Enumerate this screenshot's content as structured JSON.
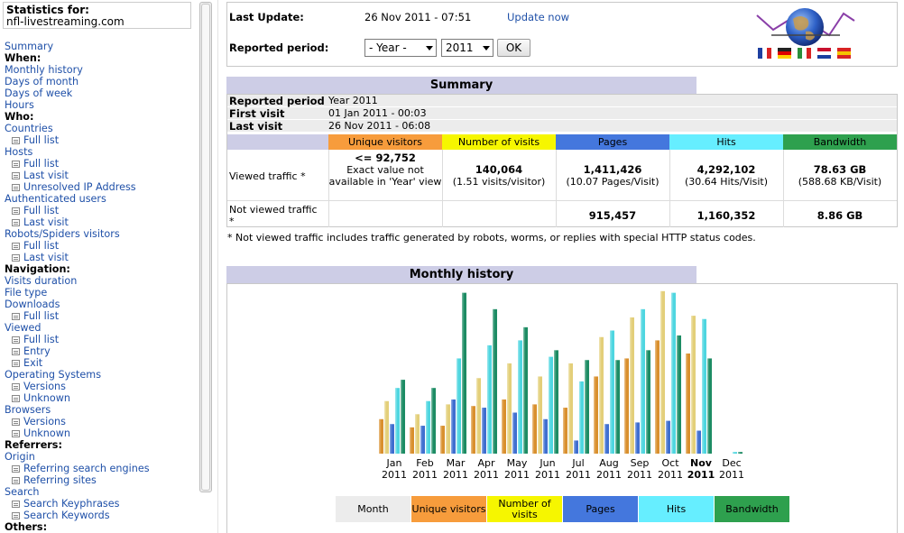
{
  "sidebar": {
    "stats_label": "Statistics for:",
    "site": "nfl-livestreaming.com",
    "items": [
      {
        "type": "link",
        "label": "Summary"
      },
      {
        "type": "head",
        "label": "When:"
      },
      {
        "type": "link",
        "label": "Monthly history"
      },
      {
        "type": "link",
        "label": "Days of month"
      },
      {
        "type": "link",
        "label": "Days of week"
      },
      {
        "type": "link",
        "label": "Hours"
      },
      {
        "type": "head",
        "label": "Who:"
      },
      {
        "type": "link",
        "label": "Countries"
      },
      {
        "type": "sub",
        "label": "Full list"
      },
      {
        "type": "link",
        "label": "Hosts"
      },
      {
        "type": "sub",
        "label": "Full list"
      },
      {
        "type": "sub",
        "label": "Last visit"
      },
      {
        "type": "sub",
        "label": "Unresolved IP Address"
      },
      {
        "type": "link",
        "label": "Authenticated users"
      },
      {
        "type": "sub",
        "label": "Full list"
      },
      {
        "type": "sub",
        "label": "Last visit"
      },
      {
        "type": "link",
        "label": "Robots/Spiders visitors"
      },
      {
        "type": "sub",
        "label": "Full list"
      },
      {
        "type": "sub",
        "label": "Last visit"
      },
      {
        "type": "head",
        "label": "Navigation:"
      },
      {
        "type": "link",
        "label": "Visits duration"
      },
      {
        "type": "link",
        "label": "File type"
      },
      {
        "type": "link",
        "label": "Downloads"
      },
      {
        "type": "sub",
        "label": "Full list"
      },
      {
        "type": "link",
        "label": "Viewed"
      },
      {
        "type": "sub",
        "label": "Full list"
      },
      {
        "type": "sub",
        "label": "Entry"
      },
      {
        "type": "sub",
        "label": "Exit"
      },
      {
        "type": "link",
        "label": "Operating Systems"
      },
      {
        "type": "sub",
        "label": "Versions"
      },
      {
        "type": "sub",
        "label": "Unknown"
      },
      {
        "type": "link",
        "label": "Browsers"
      },
      {
        "type": "sub",
        "label": "Versions"
      },
      {
        "type": "sub",
        "label": "Unknown"
      },
      {
        "type": "head",
        "label": "Referrers:"
      },
      {
        "type": "link",
        "label": "Origin"
      },
      {
        "type": "sub",
        "label": "Referring search engines"
      },
      {
        "type": "sub",
        "label": "Referring sites"
      },
      {
        "type": "link",
        "label": "Search"
      },
      {
        "type": "sub",
        "label": "Search Keyphrases"
      },
      {
        "type": "sub",
        "label": "Search Keywords"
      },
      {
        "type": "head",
        "label": "Others:"
      }
    ]
  },
  "header": {
    "last_update_label": "Last Update:",
    "last_update_value": "26 Nov 2011 - 07:51",
    "update_now": "Update now",
    "period_label": "Reported period:",
    "month_select": "- Year -",
    "year_select": "2011",
    "ok": "OK",
    "flags": [
      "#1e3fa0",
      "#222222",
      "#2a8f3a",
      "#1a3fa0",
      "#d92323"
    ]
  },
  "summary": {
    "title": "Summary",
    "reported_period_label": "Reported period",
    "reported_period_value": "Year 2011",
    "first_visit_label": "First visit",
    "first_visit_value": "01 Jan 2011 - 00:03",
    "last_visit_label": "Last visit",
    "last_visit_value": "26 Nov 2011 - 06:08",
    "columns": [
      "Unique visitors",
      "Number of visits",
      "Pages",
      "Hits",
      "Bandwidth"
    ],
    "column_colors": [
      "#f79c3c",
      "#f6f600",
      "#4477dd",
      "#66eeff",
      "#2ea04e"
    ],
    "viewed_label": "Viewed traffic *",
    "viewed": {
      "unique": "<= 92,752",
      "unique_note": "Exact value not available in 'Year' view",
      "visits": "140,064",
      "visits_sub": "(1.51 visits/visitor)",
      "pages": "1,411,426",
      "pages_sub": "(10.07 Pages/Visit)",
      "hits": "4,292,102",
      "hits_sub": "(30.64 Hits/Visit)",
      "bandwidth": "78.63 GB",
      "bandwidth_sub": "(588.68 KB/Visit)"
    },
    "not_viewed_label": "Not viewed traffic *",
    "not_viewed": {
      "pages": "915,457",
      "hits": "1,160,352",
      "bandwidth": "8.86 GB"
    },
    "footnote": "* Not viewed traffic includes traffic generated by robots, worms, or replies with special HTTP status codes."
  },
  "monthly": {
    "title": "Monthly history",
    "months": [
      {
        "name": "Jan",
        "year": "2011",
        "current": false
      },
      {
        "name": "Feb",
        "year": "2011",
        "current": false
      },
      {
        "name": "Mar",
        "year": "2011",
        "current": false
      },
      {
        "name": "Apr",
        "year": "2011",
        "current": false
      },
      {
        "name": "May",
        "year": "2011",
        "current": false
      },
      {
        "name": "Jun",
        "year": "2011",
        "current": false
      },
      {
        "name": "Jul",
        "year": "2011",
        "current": false
      },
      {
        "name": "Aug",
        "year": "2011",
        "current": false
      },
      {
        "name": "Sep",
        "year": "2011",
        "current": false
      },
      {
        "name": "Oct",
        "year": "2011",
        "current": false
      },
      {
        "name": "Nov",
        "year": "2011",
        "current": true
      },
      {
        "name": "Dec",
        "year": "2011",
        "current": false
      }
    ],
    "legend": [
      "Month",
      "Unique visitors",
      "Number of visits",
      "Pages",
      "Hits",
      "Bandwidth"
    ],
    "legend_colors": [
      "#ececec",
      "#f79c3c",
      "#f6f600",
      "#4477dd",
      "#66eeff",
      "#2ea04e"
    ]
  },
  "chart_data": {
    "type": "bar",
    "categories": [
      "Jan 2011",
      "Feb 2011",
      "Mar 2011",
      "Apr 2011",
      "May 2011",
      "Jun 2011",
      "Jul 2011",
      "Aug 2011",
      "Sep 2011",
      "Oct 2011",
      "Nov 2011",
      "Dec 2011"
    ],
    "series": [
      {
        "name": "Unique visitors",
        "color": "#d9902e",
        "values": [
          0.21,
          0.16,
          0.17,
          0.29,
          0.33,
          0.3,
          0.28,
          0.47,
          0.58,
          0.69,
          0.61,
          0
        ]
      },
      {
        "name": "Number of visits",
        "color": "#e3cf7a",
        "values": [
          0.32,
          0.24,
          0.3,
          0.46,
          0.55,
          0.47,
          0.55,
          0.71,
          0.83,
          0.99,
          0.84,
          0
        ]
      },
      {
        "name": "Pages",
        "color": "#3f6fd0",
        "values": [
          0.18,
          0.17,
          0.33,
          0.28,
          0.25,
          0.21,
          0.08,
          0.18,
          0.19,
          0.2,
          0.14,
          0
        ]
      },
      {
        "name": "Hits",
        "color": "#4fd6e0",
        "values": [
          0.4,
          0.32,
          0.58,
          0.66,
          0.69,
          0.59,
          0.44,
          0.75,
          0.88,
          0.98,
          0.82,
          0.01
        ]
      },
      {
        "name": "Bandwidth",
        "color": "#1d8c64",
        "values": [
          0.45,
          0.4,
          0.98,
          0.88,
          0.77,
          0.63,
          0.57,
          0.57,
          0.63,
          0.72,
          0.58,
          0.01
        ]
      }
    ],
    "ylim": [
      0,
      1
    ]
  }
}
